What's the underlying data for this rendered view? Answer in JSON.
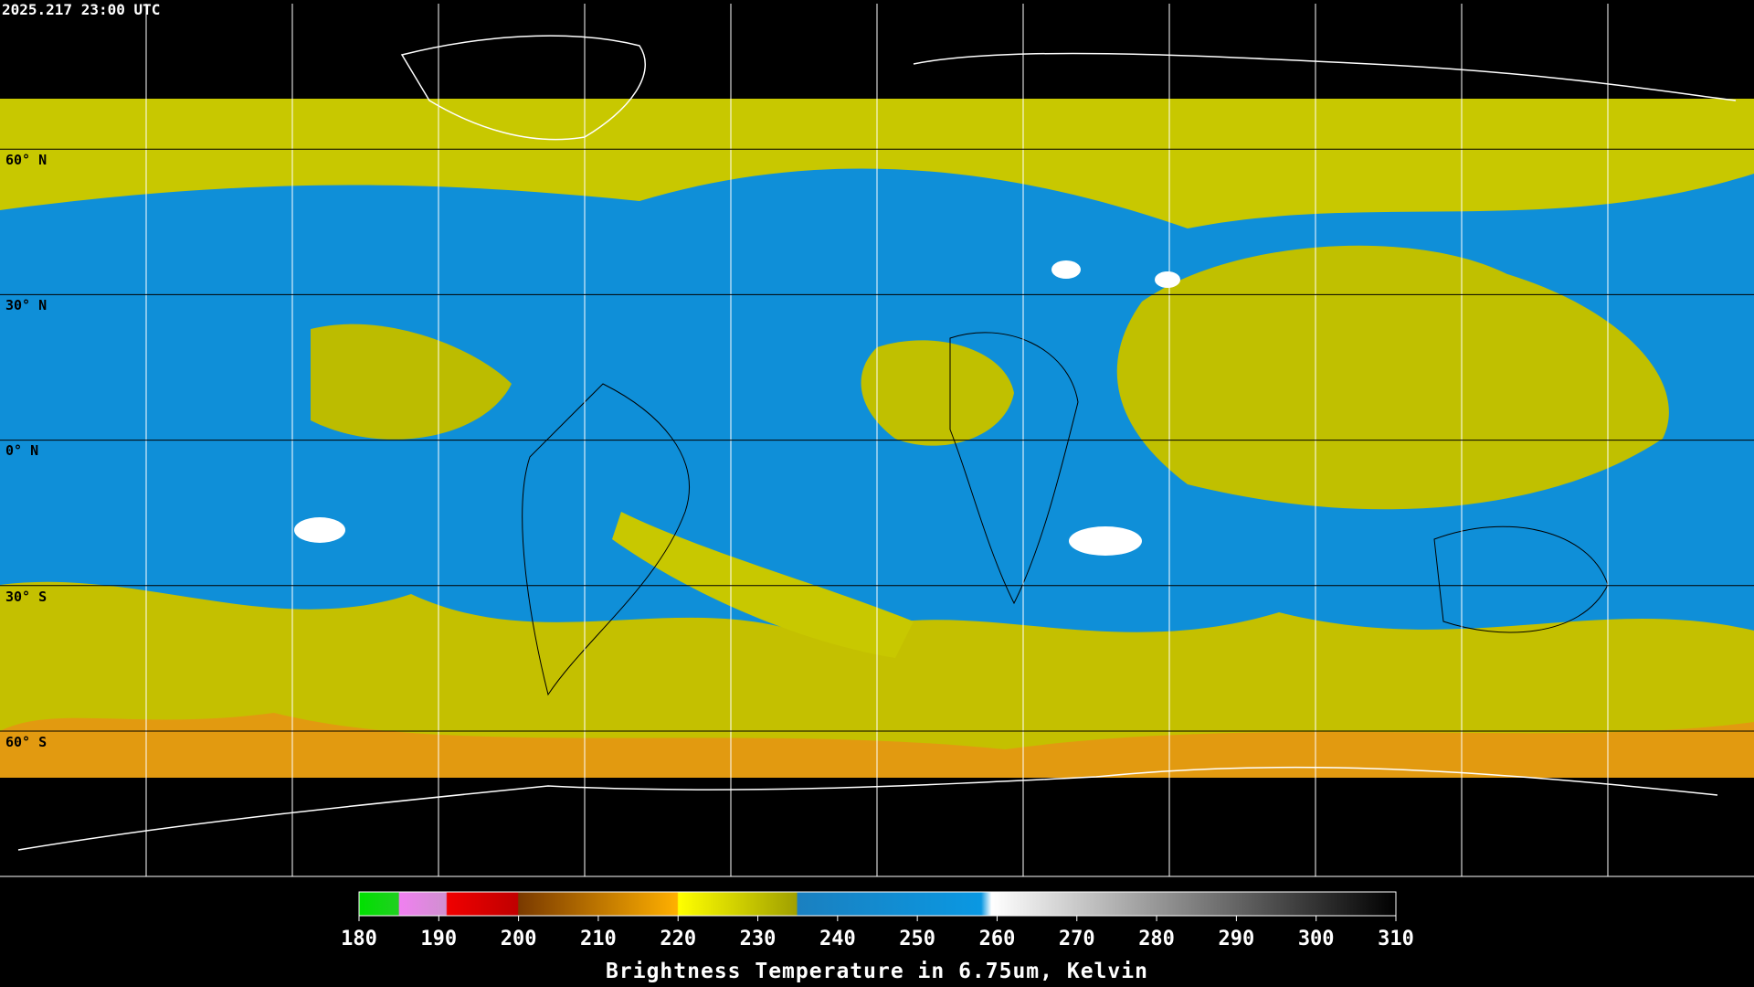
{
  "header": {
    "title": "2025.217 23:00 UTC"
  },
  "map": {
    "latitude_labels": [
      "60° N",
      "30° N",
      "0° N",
      "30° S",
      "60° S"
    ]
  },
  "colorbar": {
    "ticks": [
      180,
      190,
      200,
      210,
      220,
      230,
      240,
      250,
      260,
      270,
      280,
      290,
      300,
      310
    ],
    "label": "Brightness Temperature in 6.75um, Kelvin"
  }
}
